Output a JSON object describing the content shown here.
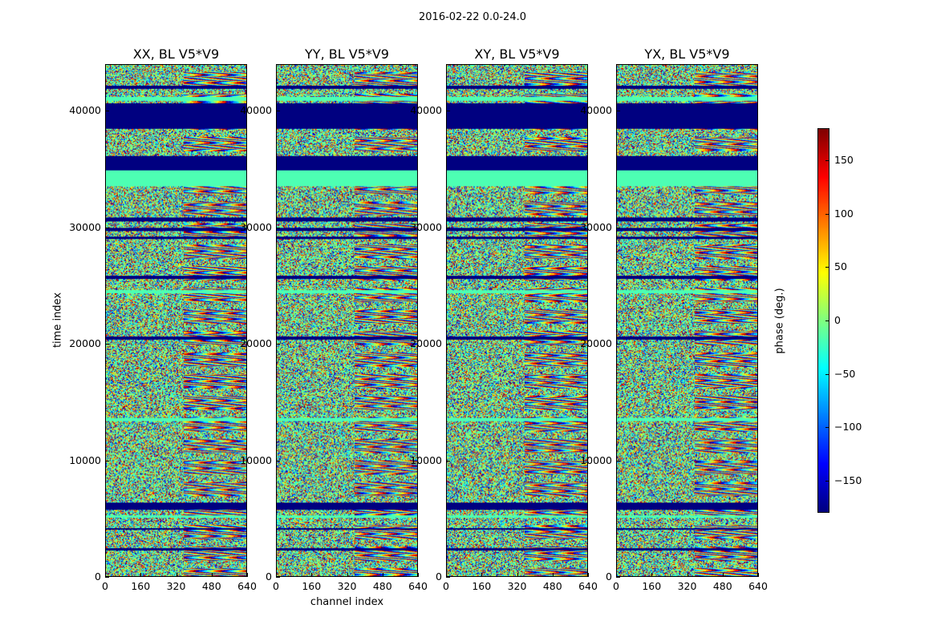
{
  "suptitle": "2016-02-22 0.0-24.0",
  "chart_data": [
    {
      "type": "heatmap",
      "title": "XX, BL V5*V9",
      "xlabel": "",
      "ylabel": "time index",
      "xlim": [
        0,
        640
      ],
      "ylim": [
        0,
        44000
      ],
      "x_ticks": [
        "0",
        "160",
        "320",
        "480",
        "640"
      ],
      "y_ticks": [
        "0",
        "10000",
        "20000",
        "30000",
        "40000"
      ],
      "value_range": [
        -180,
        180
      ]
    },
    {
      "type": "heatmap",
      "title": "YY, BL V5*V9",
      "xlabel": "channel index",
      "ylabel": "",
      "xlim": [
        0,
        640
      ],
      "ylim": [
        0,
        44000
      ],
      "x_ticks": [
        "0",
        "160",
        "320",
        "480",
        "640"
      ],
      "y_ticks": [
        "0",
        "10000",
        "20000",
        "30000",
        "40000"
      ],
      "value_range": [
        -180,
        180
      ]
    },
    {
      "type": "heatmap",
      "title": "XY, BL V5*V9",
      "xlabel": "",
      "ylabel": "",
      "xlim": [
        0,
        640
      ],
      "ylim": [
        0,
        44000
      ],
      "x_ticks": [
        "0",
        "160",
        "320",
        "480",
        "640"
      ],
      "y_ticks": [
        "0",
        "10000",
        "20000",
        "30000",
        "40000"
      ],
      "value_range": [
        -180,
        180
      ]
    },
    {
      "type": "heatmap",
      "title": "YX, BL V5*V9",
      "xlabel": "",
      "ylabel": "",
      "xlim": [
        0,
        640
      ],
      "ylim": [
        0,
        44000
      ],
      "x_ticks": [
        "0",
        "160",
        "320",
        "480",
        "640"
      ],
      "y_ticks": [
        "0",
        "10000",
        "20000",
        "30000",
        "40000"
      ],
      "value_range": [
        -180,
        180
      ]
    }
  ],
  "colorbar": {
    "label": "phase (deg.)",
    "range": [
      -180,
      180
    ],
    "ticks": [
      "150",
      "100",
      "50",
      "0",
      "−50",
      "−100",
      "−150"
    ],
    "tick_values": [
      150,
      100,
      50,
      0,
      -50,
      -100,
      -150
    ],
    "colormap": "jet"
  },
  "fill_value": "dark-blue (flagged)"
}
